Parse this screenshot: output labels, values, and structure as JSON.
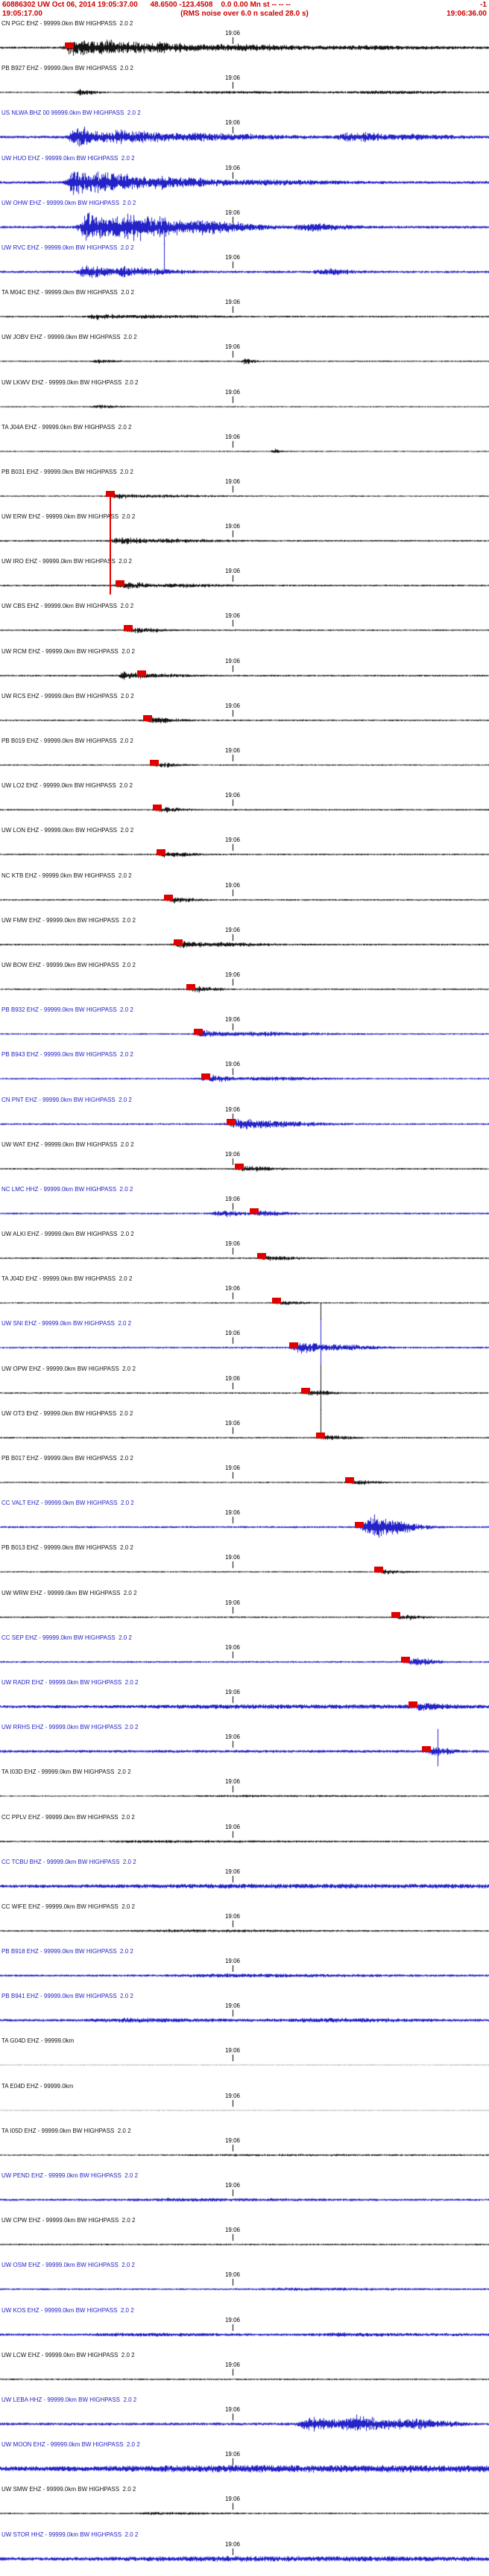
{
  "header": {
    "event_line": "60886302 UW Oct 06, 2014 19:05:37.00      48.6500 -123.4508    0.0 0.00 Mn st -- -- --",
    "event_flag": "-1",
    "window_start": "19:05:17.00",
    "scale_note": "(RMS noise over 6.0 n scaled 28.0 s)",
    "window_end": "19:06:36.00"
  },
  "timeline": {
    "tick_label": "19:06",
    "tick_fraction": 0.475
  },
  "colors": {
    "header_red": "#cc0000",
    "pick_red": "#e00000",
    "trace_black": "#141414",
    "trace_blue": "#2323c8"
  },
  "traces": [
    {
      "label": "CN PGC EHZ - 99999.0km BW HIGHPASS  2.0 2",
      "color": "black",
      "noise": 1.4,
      "bursts": [
        [
          0.15,
          0.05,
          13
        ],
        [
          0.22,
          0.1,
          9
        ],
        [
          0.33,
          0.12,
          5
        ],
        [
          0.5,
          0.2,
          3
        ],
        [
          0.75,
          0.2,
          1.8
        ]
      ],
      "pick": 0.142
    },
    {
      "label": "PB B927 EHZ - 99999.0km BW HIGHPASS  2.0 2",
      "color": "black",
      "noise": 0.9,
      "bursts": [
        [
          0.165,
          0.03,
          4
        ],
        [
          0.45,
          0.3,
          1.2
        ],
        [
          0.78,
          0.15,
          1.6
        ]
      ]
    },
    {
      "label": "US NLWA BHZ 00 99999.0km BW HIGHPASS  2.0 2",
      "color": "blue",
      "noise": 1.8,
      "bursts": [
        [
          0.155,
          0.04,
          15
        ],
        [
          0.24,
          0.12,
          9
        ],
        [
          0.42,
          0.15,
          4
        ],
        [
          0.72,
          0.09,
          6
        ],
        [
          0.85,
          0.08,
          2.5
        ]
      ]
    },
    {
      "label": "UW HUO EHZ - 99999.0km BW HIGHPASS  2.0 2",
      "color": "blue",
      "noise": 1.8,
      "bursts": [
        [
          0.15,
          0.035,
          17
        ],
        [
          0.21,
          0.1,
          13
        ],
        [
          0.35,
          0.12,
          6
        ],
        [
          0.55,
          0.15,
          2.5
        ]
      ]
    },
    {
      "label": "UW OHW EHZ - 99999.0km BW HIGHPASS  2.0 2",
      "color": "blue",
      "noise": 1.8,
      "bursts": [
        [
          0.175,
          0.04,
          21
        ],
        [
          0.25,
          0.12,
          19
        ],
        [
          0.42,
          0.1,
          7
        ],
        [
          0.63,
          0.07,
          5
        ]
      ],
      "spikes": [
        [
          0.335,
          30,
          61
        ]
      ]
    },
    {
      "label": "UW RVC EHZ - 99999.0km BW HIGHPASS  2.0 2",
      "color": "blue",
      "noise": 1.6,
      "bursts": [
        [
          0.175,
          0.04,
          9
        ],
        [
          0.25,
          0.09,
          6
        ],
        [
          0.66,
          0.05,
          4.5
        ]
      ],
      "spikes": [
        [
          0.335,
          0,
          40
        ]
      ]
    },
    {
      "label": "TA M04C EHZ - 99999.0km BW HIGHPASS  2.0 2",
      "color": "black",
      "noise": 1.1,
      "bursts": [
        [
          0.195,
          0.05,
          3.5
        ],
        [
          0.3,
          0.12,
          1.8
        ]
      ]
    },
    {
      "label": "UW JOBV EHZ - 99999.0km BW HIGHPASS  2.0 2",
      "color": "black",
      "noise": 0.9,
      "bursts": [
        [
          0.2,
          0.03,
          2.5
        ],
        [
          0.5,
          0.02,
          3.5
        ]
      ]
    },
    {
      "label": "UW LKWV EHZ - 99999.0km BW HIGHPASS  2.0 2",
      "color": "black",
      "noise": 0.8,
      "bursts": [
        [
          0.2,
          0.04,
          2.2
        ]
      ]
    },
    {
      "label": "TA J04A EHZ - 99999.0km BW HIGHPASS  2.0 2",
      "color": "black",
      "noise": 0.8,
      "bursts": [
        [
          0.56,
          0.015,
          3
        ]
      ]
    },
    {
      "label": "PB B031 EHZ - 99999.0km BW HIGHPASS  2.0 2",
      "color": "black",
      "noise": 0.9,
      "bursts": [
        [
          0.235,
          0.04,
          3.5
        ],
        [
          0.32,
          0.1,
          1.6
        ]
      ],
      "pick": 0.225,
      "pick_tall": true
    },
    {
      "label": "UW ERW EHZ - 99999.0km BW HIGHPASS  2.0 2",
      "color": "black",
      "noise": 1.1,
      "bursts": [
        [
          0.245,
          0.05,
          4.5
        ],
        [
          0.34,
          0.1,
          2.2
        ]
      ]
    },
    {
      "label": "UW IRO EHZ - 99999.0km BW HIGHPASS  2.0 2",
      "color": "black",
      "noise": 1.1,
      "bursts": [
        [
          0.255,
          0.05,
          4.5
        ],
        [
          0.36,
          0.08,
          2.4
        ]
      ],
      "pick": 0.245
    },
    {
      "label": "UW CBS EHZ - 99999.0km BW HIGHPASS  2.0 2",
      "color": "black",
      "noise": 1.0,
      "bursts": [
        [
          0.272,
          0.05,
          3.8
        ]
      ],
      "pick": 0.262
    },
    {
      "label": "UW RCM EHZ - 99999.0km BW HIGHPASS  2.0 2",
      "color": "black",
      "noise": 1.1,
      "bursts": [
        [
          0.25,
          0.03,
          5
        ],
        [
          0.3,
          0.07,
          3
        ]
      ],
      "pick": 0.29
    },
    {
      "label": "UW RCS EHZ - 99999.0km BW HIGHPASS  2.0 2",
      "color": "black",
      "noise": 1.0,
      "bursts": [
        [
          0.312,
          0.05,
          3.6
        ]
      ],
      "pick": 0.302
    },
    {
      "label": "PB B019 EHZ - 99999.0km BW HIGHPASS  2.0 2",
      "color": "black",
      "noise": 0.9,
      "bursts": [
        [
          0.325,
          0.04,
          3
        ]
      ],
      "pick": 0.315
    },
    {
      "label": "UW LO2 EHZ - 99999.0km BW HIGHPASS  2.0 2",
      "color": "black",
      "noise": 1.0,
      "bursts": [
        [
          0.332,
          0.04,
          3.4
        ]
      ],
      "pick": 0.322
    },
    {
      "label": "UW LON EHZ - 99999.0km BW HIGHPASS  2.0 2",
      "color": "black",
      "noise": 1.0,
      "bursts": [
        [
          0.34,
          0.05,
          3.8
        ]
      ],
      "pick": 0.33
    },
    {
      "label": "NC KTB EHZ - 99999.0km BW HIGHPASS  2.0 2",
      "color": "black",
      "noise": 1.0,
      "bursts": [
        [
          0.355,
          0.04,
          3.6
        ]
      ],
      "pick": 0.345
    },
    {
      "label": "UW FMW EHZ - 99999.0km BW HIGHPASS  2.0 2",
      "color": "black",
      "noise": 1.1,
      "bursts": [
        [
          0.375,
          0.05,
          4.5
        ],
        [
          0.46,
          0.08,
          2.2
        ]
      ],
      "pick": 0.365
    },
    {
      "label": "UW BOW EHZ - 99999.0km BW HIGHPASS  2.0 2",
      "color": "black",
      "noise": 1.0,
      "bursts": [
        [
          0.4,
          0.04,
          3.8
        ]
      ],
      "pick": 0.39
    },
    {
      "label": "PB B932 EHZ - 99999.0km BW HIGHPASS  2.0 2",
      "color": "blue",
      "noise": 1.1,
      "bursts": [
        [
          0.415,
          0.05,
          4.5
        ],
        [
          0.52,
          0.12,
          2.6
        ]
      ],
      "pick": 0.405
    },
    {
      "label": "PB B943 EHZ - 99999.0km BW HIGHPASS  2.0 2",
      "color": "blue",
      "noise": 1.1,
      "bursts": [
        [
          0.43,
          0.05,
          4.5
        ],
        [
          0.54,
          0.1,
          2.6
        ]
      ],
      "pick": 0.42
    },
    {
      "label": "CN PNT EHZ - 99999.0km BW HIGHPASS  2.0 2",
      "color": "blue",
      "noise": 1.2,
      "bursts": [
        [
          0.487,
          0.06,
          7
        ],
        [
          0.57,
          0.09,
          3.2
        ]
      ],
      "pick": 0.472
    },
    {
      "label": "UW WAT EHZ - 99999.0km BW HIGHPASS  2.0 2",
      "color": "black",
      "noise": 1.0,
      "bursts": [
        [
          0.503,
          0.05,
          3.8
        ]
      ],
      "pick": 0.49
    },
    {
      "label": "NC LMC HHZ - 99999.0km BW HIGHPASS  2.0 2",
      "color": "blue",
      "noise": 1.2,
      "bursts": [
        [
          0.45,
          0.04,
          4.5
        ],
        [
          0.535,
          0.05,
          3
        ]
      ],
      "pick": 0.52
    },
    {
      "label": "UW ALKI EHZ - 99999.0km BW HIGHPASS  2.0 2",
      "color": "black",
      "noise": 1.0,
      "bursts": [
        [
          0.55,
          0.05,
          3.6
        ]
      ],
      "pick": 0.535
    },
    {
      "label": "TA J04D EHZ - 99999.0km BW HIGHPASS  2.0 2",
      "color": "black",
      "noise": 0.9,
      "bursts": [
        [
          0.578,
          0.035,
          3
        ]
      ],
      "pick": 0.565,
      "spikes": [
        [
          0.655,
          38,
          61
        ]
      ]
    },
    {
      "label": "UW SNI EHZ - 99999.0km BW HIGHPASS  2.0 2",
      "color": "blue",
      "noise": 1.2,
      "bursts": [
        [
          0.613,
          0.05,
          7.5
        ],
        [
          0.69,
          0.07,
          3.5
        ]
      ],
      "pick": 0.6,
      "spikes": [
        [
          0.655,
          0,
          61
        ]
      ]
    },
    {
      "label": "UW OPW EHZ - 99999.0km BW HIGHPASS  2.0 2",
      "color": "black",
      "noise": 1.0,
      "bursts": [
        [
          0.638,
          0.04,
          3.6
        ]
      ],
      "pick": 0.625,
      "spikes": [
        [
          0.655,
          0,
          61
        ]
      ]
    },
    {
      "label": "UW OT3 EHZ - 99999.0km BW HIGHPASS  2.0 2",
      "color": "black",
      "noise": 1.0,
      "bursts": [
        [
          0.668,
          0.04,
          3.6
        ]
      ],
      "pick": 0.655,
      "spikes": [
        [
          0.655,
          0,
          38
        ]
      ]
    },
    {
      "label": "PB B017 EHZ - 99999.0km BW HIGHPASS  2.0 2",
      "color": "black",
      "noise": 0.9,
      "bursts": [
        [
          0.728,
          0.04,
          3.2
        ]
      ],
      "pick": 0.715
    },
    {
      "label": "CC VALT EHZ - 99999.0km BW HIGHPASS  2.0 2",
      "color": "blue",
      "noise": 1.3,
      "bursts": [
        [
          0.755,
          0.045,
          19
        ],
        [
          0.81,
          0.05,
          7
        ]
      ],
      "pick": 0.735
    },
    {
      "label": "PB B013 EHZ - 99999.0km BW HIGHPASS  2.0 2",
      "color": "black",
      "noise": 0.9,
      "bursts": [
        [
          0.788,
          0.035,
          3
        ]
      ],
      "pick": 0.775
    },
    {
      "label": "UW WRW EHZ - 99999.0km BW HIGHPASS  2.0 2",
      "color": "black",
      "noise": 1.0,
      "bursts": [
        [
          0.822,
          0.04,
          3.6
        ]
      ],
      "pick": 0.81
    },
    {
      "label": "CC SEP EHZ - 99999.0km BW HIGHPASS  2.0 2",
      "color": "blue",
      "noise": 1.2,
      "bursts": [
        [
          0.843,
          0.04,
          5.5
        ]
      ],
      "pick": 0.83
    },
    {
      "label": "UW RADR EHZ - 99999.0km BW HIGHPASS  2.0 2",
      "color": "blue",
      "noise": 2.0,
      "bursts": [
        [
          0.5,
          0.6,
          1.5
        ],
        [
          0.858,
          0.04,
          3.5
        ]
      ],
      "pick": 0.845
    },
    {
      "label": "UW RRHS EHZ - 99999.0km BW HIGHPASS  2.0 2",
      "color": "blue",
      "noise": 1.8,
      "bursts": [
        [
          0.884,
          0.035,
          5
        ]
      ],
      "pick": 0.872,
      "spikes": [
        [
          0.895,
          8,
          58
        ]
      ]
    },
    {
      "label": "TA I03D EHZ - 99999.0km BW HIGHPASS  2.0 2",
      "color": "black",
      "noise": 0.8,
      "bursts": [
        [
          0.5,
          0.4,
          0.8
        ]
      ]
    },
    {
      "label": "CC PPLV EHZ - 99999.0km BW HIGHPASS  2.0 2",
      "color": "black",
      "noise": 1.0,
      "bursts": [
        [
          0.3,
          0.3,
          1.0
        ]
      ]
    },
    {
      "label": "CC TCBU BHZ - 99999.0km BW HIGHPASS  2.0 2",
      "color": "blue",
      "noise": 2.2,
      "bursts": [
        [
          0.5,
          0.7,
          1.4
        ]
      ]
    },
    {
      "label": "CC WIFE EHZ - 99999.0km BW HIGHPASS  2.0 2",
      "color": "black",
      "noise": 1.0,
      "bursts": [
        [
          0.35,
          0.25,
          1.2
        ]
      ]
    },
    {
      "label": "PB B918 EHZ - 99999.0km BW HIGHPASS  2.0 2",
      "color": "blue",
      "noise": 1.4,
      "bursts": [
        [
          0.45,
          0.3,
          1.6
        ]
      ]
    },
    {
      "label": "PB B941 EHZ - 99999.0km BW HIGHPASS  2.0 2",
      "color": "blue",
      "noise": 1.7,
      "bursts": [
        [
          0.25,
          0.2,
          1.8
        ],
        [
          0.65,
          0.2,
          1.8
        ]
      ]
    },
    {
      "label": "TA G04D EHZ - 99999.0km",
      "color": "black",
      "noise": 0.25,
      "bursts": []
    },
    {
      "label": "TA E04D EHZ - 99999.0km",
      "color": "black",
      "noise": 0.25,
      "bursts": []
    },
    {
      "label": "TA I05D EHZ - 99999.0km BW HIGHPASS  2.0 2",
      "color": "black",
      "noise": 0.9,
      "bursts": [
        [
          0.5,
          0.4,
          0.7
        ]
      ]
    },
    {
      "label": "UW PEND EHZ - 99999.0km BW HIGHPASS  2.0 2",
      "color": "blue",
      "noise": 1.4,
      "bursts": [
        [
          0.35,
          0.3,
          1.2
        ]
      ]
    },
    {
      "label": "UW CPW EHZ - 99999.0km BW HIGHPASS  2.0 2",
      "color": "black",
      "noise": 1.0,
      "bursts": []
    },
    {
      "label": "UW OSM EHZ - 99999.0km BW HIGHPASS  2.0 2",
      "color": "blue",
      "noise": 1.2,
      "bursts": [
        [
          0.6,
          0.2,
          1.2
        ]
      ]
    },
    {
      "label": "UW KOS EHZ - 99999.0km BW HIGHPASS  2.0 2",
      "color": "blue",
      "noise": 1.5,
      "bursts": [
        [
          0.25,
          0.2,
          1.6
        ],
        [
          0.7,
          0.2,
          1.6
        ]
      ]
    },
    {
      "label": "UW LCW EHZ - 99999.0km BW HIGHPASS  2.0 2",
      "color": "black",
      "noise": 1.0,
      "bursts": []
    },
    {
      "label": "UW LEBA HHZ - 99999.0km BW HIGHPASS  2.0 2",
      "color": "blue",
      "noise": 1.8,
      "bursts": [
        [
          0.63,
          0.06,
          9
        ],
        [
          0.73,
          0.09,
          11
        ],
        [
          0.85,
          0.07,
          5
        ]
      ]
    },
    {
      "label": "UW MOON EHZ - 99999.0km BW HIGHPASS  2.0 2",
      "color": "blue",
      "noise": 3.0,
      "bursts": [
        [
          0.5,
          0.9,
          2.5
        ]
      ]
    },
    {
      "label": "UW SMW EHZ - 99999.0km BW HIGHPASS  2.0 2",
      "color": "black",
      "noise": 1.0,
      "bursts": [
        [
          0.32,
          0.1,
          1.3
        ]
      ]
    },
    {
      "label": "UW STOR HHZ - 99999.0km BW HIGHPASS  2.0 2",
      "color": "blue",
      "noise": 2.2,
      "bursts": [
        [
          0.45,
          0.6,
          1.8
        ]
      ]
    }
  ]
}
